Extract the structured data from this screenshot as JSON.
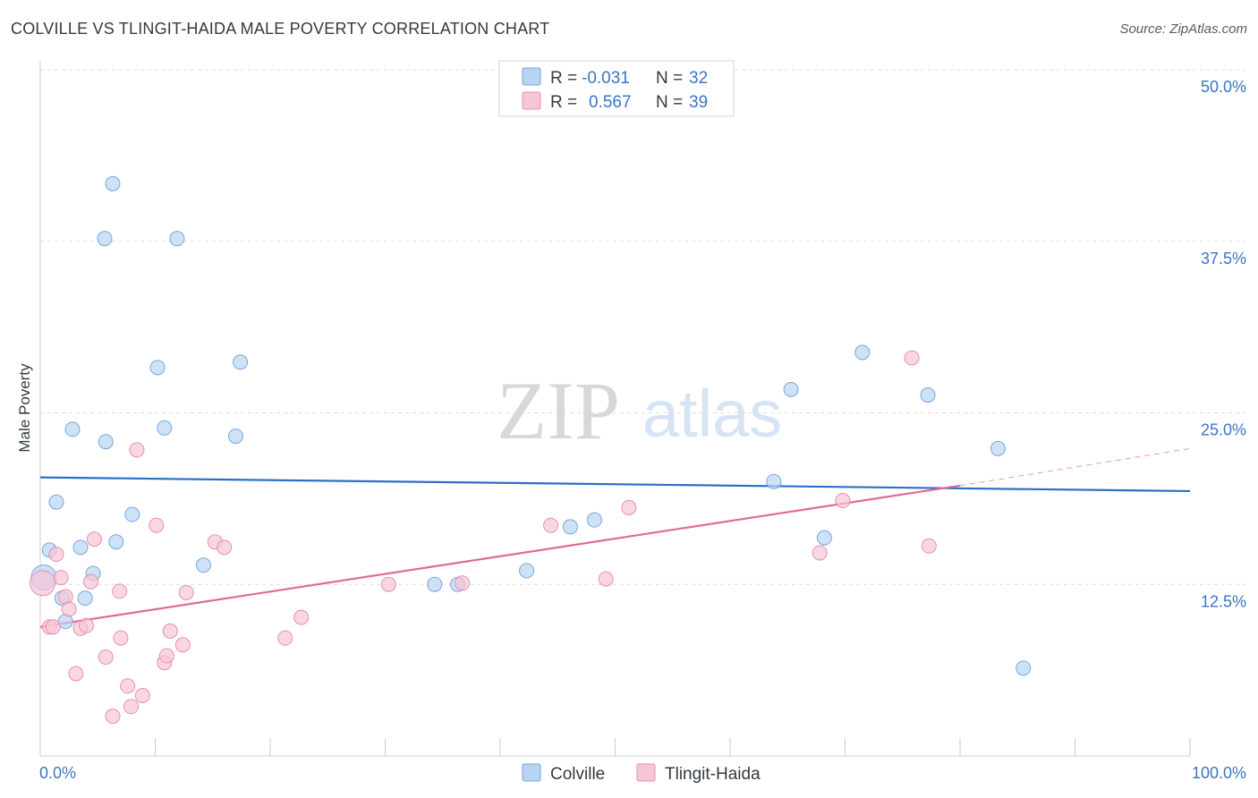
{
  "title": "COLVILLE VS TLINGIT-HAIDA MALE POVERTY CORRELATION CHART",
  "source": "Source: ZipAtlas.com",
  "watermark": {
    "zip": "ZIP",
    "atlas": "atlas"
  },
  "colors": {
    "colville_fill": "#b8d4f4",
    "colville_stroke": "#7aa6dc",
    "colville_line": "#2b6fc7",
    "tlingit_fill": "#f7c6d6",
    "tlingit_stroke": "#e88fae",
    "tlingit_line": "#e06a96",
    "axis_label": "#3a74c4",
    "grid": "#dddddd"
  },
  "legend": {
    "r_label": "R =",
    "n_label": "N =",
    "colville": {
      "r": "-0.031",
      "n": "32"
    },
    "tlingit": {
      "r": "0.567",
      "n": "39"
    }
  },
  "bottom_legend": {
    "colville": "Colville",
    "tlingit": "Tlingit-Haida"
  },
  "chart_data": {
    "type": "scatter",
    "title": "COLVILLE VS TLINGIT-HAIDA MALE POVERTY CORRELATION CHART",
    "xlabel": "",
    "ylabel": "Male Poverty",
    "xlim": [
      0,
      100
    ],
    "ylim": [
      0,
      50
    ],
    "x_tick_labels": [
      "0.0%",
      "100.0%"
    ],
    "y_ticks": [
      12.5,
      25.0,
      37.5,
      50.0
    ],
    "y_tick_labels": [
      "12.5%",
      "25.0%",
      "37.5%",
      "50.0%"
    ],
    "grid": true,
    "legend_position": "top-center",
    "series": [
      {
        "name": "Colville",
        "r": -0.031,
        "n": 32,
        "trend": {
          "x": [
            0,
            100
          ],
          "y": [
            20.3,
            19.3
          ]
        },
        "points": [
          {
            "x": 6.3,
            "y": 41.7
          },
          {
            "x": 5.6,
            "y": 37.7
          },
          {
            "x": 11.9,
            "y": 37.7
          },
          {
            "x": 10.2,
            "y": 28.3
          },
          {
            "x": 17.4,
            "y": 28.7
          },
          {
            "x": 2.8,
            "y": 23.8
          },
          {
            "x": 5.7,
            "y": 22.9
          },
          {
            "x": 10.8,
            "y": 23.9
          },
          {
            "x": 17.0,
            "y": 23.3
          },
          {
            "x": 1.4,
            "y": 18.5
          },
          {
            "x": 8.0,
            "y": 17.6
          },
          {
            "x": 0.8,
            "y": 15.0
          },
          {
            "x": 3.5,
            "y": 15.2
          },
          {
            "x": 6.6,
            "y": 15.6
          },
          {
            "x": 14.2,
            "y": 13.9
          },
          {
            "x": 4.6,
            "y": 13.3
          },
          {
            "x": 0.3,
            "y": 13.0
          },
          {
            "x": 1.9,
            "y": 11.5
          },
          {
            "x": 3.9,
            "y": 11.5
          },
          {
            "x": 2.2,
            "y": 9.8
          },
          {
            "x": 34.3,
            "y": 12.5
          },
          {
            "x": 36.3,
            "y": 12.5
          },
          {
            "x": 42.3,
            "y": 13.5
          },
          {
            "x": 46.1,
            "y": 16.7
          },
          {
            "x": 48.2,
            "y": 17.2
          },
          {
            "x": 63.8,
            "y": 20.0
          },
          {
            "x": 65.3,
            "y": 26.7
          },
          {
            "x": 68.2,
            "y": 15.9
          },
          {
            "x": 71.5,
            "y": 29.4
          },
          {
            "x": 77.2,
            "y": 26.3
          },
          {
            "x": 83.3,
            "y": 22.4
          },
          {
            "x": 85.5,
            "y": 6.4
          }
        ]
      },
      {
        "name": "Tlingit-Haida",
        "r": 0.567,
        "n": 39,
        "trend": {
          "x": [
            0,
            80
          ],
          "y": [
            9.4,
            19.7
          ]
        },
        "trend_dashed": {
          "x": [
            80,
            100
          ],
          "y": [
            19.7,
            22.4
          ]
        },
        "points": [
          {
            "x": 0.2,
            "y": 12.6
          },
          {
            "x": 0.8,
            "y": 9.4
          },
          {
            "x": 1.1,
            "y": 9.4
          },
          {
            "x": 1.4,
            "y": 14.7
          },
          {
            "x": 1.8,
            "y": 13.0
          },
          {
            "x": 2.2,
            "y": 11.6
          },
          {
            "x": 2.5,
            "y": 10.7
          },
          {
            "x": 3.1,
            "y": 6.0
          },
          {
            "x": 3.5,
            "y": 9.3
          },
          {
            "x": 4.0,
            "y": 9.5
          },
          {
            "x": 4.4,
            "y": 12.7
          },
          {
            "x": 4.7,
            "y": 15.8
          },
          {
            "x": 5.7,
            "y": 7.2
          },
          {
            "x": 6.3,
            "y": 2.9
          },
          {
            "x": 6.9,
            "y": 12.0
          },
          {
            "x": 7.0,
            "y": 8.6
          },
          {
            "x": 7.6,
            "y": 5.1
          },
          {
            "x": 7.9,
            "y": 3.6
          },
          {
            "x": 8.4,
            "y": 22.3
          },
          {
            "x": 8.9,
            "y": 4.4
          },
          {
            "x": 10.1,
            "y": 16.8
          },
          {
            "x": 10.8,
            "y": 6.8
          },
          {
            "x": 11.0,
            "y": 7.3
          },
          {
            "x": 11.3,
            "y": 9.1
          },
          {
            "x": 12.4,
            "y": 8.1
          },
          {
            "x": 12.7,
            "y": 11.9
          },
          {
            "x": 15.2,
            "y": 15.6
          },
          {
            "x": 16.0,
            "y": 15.2
          },
          {
            "x": 21.3,
            "y": 8.6
          },
          {
            "x": 22.7,
            "y": 10.1
          },
          {
            "x": 30.3,
            "y": 12.5
          },
          {
            "x": 36.7,
            "y": 12.6
          },
          {
            "x": 44.4,
            "y": 16.8
          },
          {
            "x": 49.2,
            "y": 12.9
          },
          {
            "x": 51.2,
            "y": 18.1
          },
          {
            "x": 67.8,
            "y": 14.8
          },
          {
            "x": 69.8,
            "y": 18.6
          },
          {
            "x": 75.8,
            "y": 29.0
          },
          {
            "x": 77.3,
            "y": 15.3
          }
        ]
      }
    ]
  }
}
